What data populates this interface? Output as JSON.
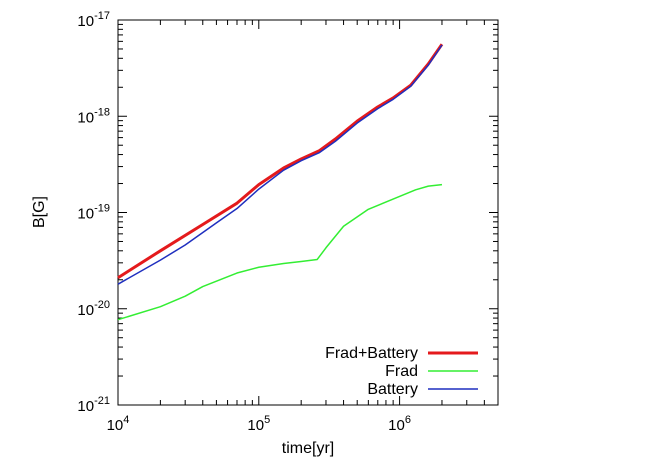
{
  "chart_data": {
    "type": "line",
    "xlabel": "time[yr]",
    "ylabel": "B[G]",
    "xscale": "log",
    "yscale": "log",
    "xlim": [
      10000,
      5000000
    ],
    "ylim": [
      1e-21,
      1e-17
    ],
    "x_ticks": [
      {
        "value": 10000,
        "base": "10",
        "exp": "4"
      },
      {
        "value": 100000,
        "base": "10",
        "exp": "5"
      },
      {
        "value": 1000000,
        "base": "10",
        "exp": "6"
      }
    ],
    "y_ticks": [
      {
        "value": 1e-21,
        "base": "10",
        "exp": "-21"
      },
      {
        "value": 1e-20,
        "base": "10",
        "exp": "-20"
      },
      {
        "value": 1e-19,
        "base": "10",
        "exp": "-19"
      },
      {
        "value": 1e-18,
        "base": "10",
        "exp": "-18"
      },
      {
        "value": 1e-17,
        "base": "10",
        "exp": "-17"
      }
    ],
    "grid": false,
    "legend_position": "bottom-right",
    "series": [
      {
        "name": "Frad+Battery",
        "color": "#e41a1c",
        "x": [
          10000,
          20000,
          40000,
          70000,
          100000,
          150000,
          200000,
          270000,
          350000,
          500000,
          700000,
          900000,
          1200000,
          1600000,
          2000000
        ],
        "y": [
          2.1e-20,
          4e-20,
          7.5e-20,
          1.25e-19,
          1.95e-19,
          2.9e-19,
          3.6e-19,
          4.4e-19,
          5.8e-19,
          8.9e-19,
          1.25e-18,
          1.55e-18,
          2.1e-18,
          3.5e-18,
          5.6e-18
        ]
      },
      {
        "name": "Frad",
        "color": "#33ee33",
        "x": [
          10000,
          20000,
          30000,
          40000,
          70000,
          100000,
          150000,
          200000,
          260000,
          300000,
          400000,
          600000,
          900000,
          1300000,
          1600000,
          2000000
        ],
        "y": [
          7.7e-21,
          1.05e-20,
          1.35e-20,
          1.7e-20,
          2.35e-20,
          2.7e-20,
          2.95e-20,
          3.1e-20,
          3.25e-20,
          4.3e-20,
          7.2e-20,
          1.08e-19,
          1.38e-19,
          1.72e-19,
          1.88e-19,
          1.95e-19
        ]
      },
      {
        "name": "Battery",
        "color": "#1f2fbf",
        "x": [
          10000,
          20000,
          30000,
          50000,
          70000,
          100000,
          150000,
          200000,
          270000,
          350000,
          500000,
          700000,
          900000,
          1200000,
          1600000,
          2000000
        ],
        "y": [
          1.8e-20,
          3.2e-20,
          4.6e-20,
          7.8e-20,
          1.1e-19,
          1.75e-19,
          2.75e-19,
          3.45e-19,
          4.2e-19,
          5.5e-19,
          8.5e-19,
          1.2e-18,
          1.5e-18,
          2.05e-18,
          3.4e-18,
          5.5e-18
        ]
      }
    ]
  }
}
